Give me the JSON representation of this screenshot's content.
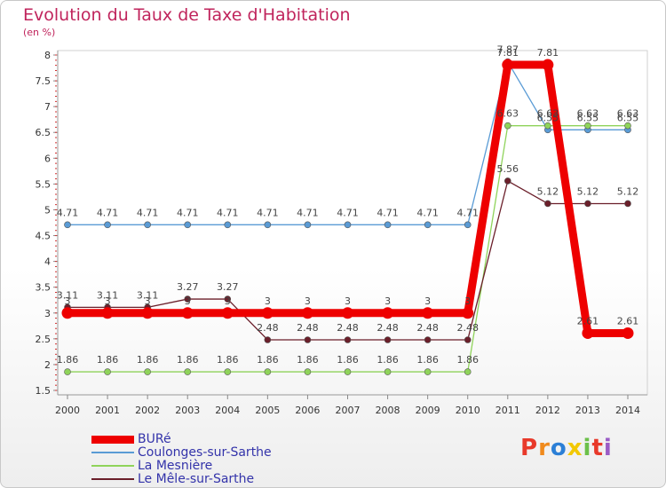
{
  "title": "Evolution du Taux de Taxe d'Habitation",
  "subtitle": "(en %)",
  "brand": "Proxiti",
  "chart_data": {
    "type": "line",
    "x": [
      "2000",
      "2001",
      "2002",
      "2003",
      "2004",
      "2005",
      "2006",
      "2007",
      "2008",
      "2009",
      "2010",
      "2011",
      "2012",
      "2013",
      "2014"
    ],
    "ylim": [
      1.5,
      8
    ],
    "yticks": [
      "1.5",
      "2",
      "2.5",
      "3",
      "3.5",
      "4",
      "4.5",
      "5",
      "5.5",
      "6",
      "6.5",
      "7",
      "7.5",
      "8"
    ],
    "grid": false,
    "legend": "bottom-left",
    "series": [
      {
        "name": "BURé",
        "color": "#ee0000",
        "values": [
          3,
          3,
          3,
          3,
          3,
          3,
          3,
          3,
          3,
          3,
          3,
          7.81,
          7.81,
          2.61,
          2.61
        ],
        "labels": [
          "3",
          "3",
          "3",
          "3",
          "3",
          "3",
          "3",
          "3",
          "3",
          "3",
          "3",
          "7.81",
          "7.81",
          "2.61",
          "2.61"
        ]
      },
      {
        "name": "Coulonges-sur-Sarthe",
        "color": "#5a9bd5",
        "values": [
          4.71,
          4.71,
          4.71,
          4.71,
          4.71,
          4.71,
          4.71,
          4.71,
          4.71,
          4.71,
          4.71,
          7.87,
          6.55,
          6.55,
          6.55
        ],
        "labels": [
          "4.71",
          "4.71",
          "4.71",
          "4.71",
          "4.71",
          "4.71",
          "4.71",
          "4.71",
          "4.71",
          "4.71",
          "4.71",
          "7.87",
          "6.55",
          "6.55",
          "6.55"
        ]
      },
      {
        "name": "La Mesnière",
        "color": "#8fd35a",
        "values": [
          1.86,
          1.86,
          1.86,
          1.86,
          1.86,
          1.86,
          1.86,
          1.86,
          1.86,
          1.86,
          1.86,
          6.63,
          6.63,
          6.63,
          6.63
        ],
        "labels": [
          "1.86",
          "1.86",
          "1.86",
          "1.86",
          "1.86",
          "1.86",
          "1.86",
          "1.86",
          "1.86",
          "1.86",
          "1.86",
          "6.63",
          "6.63",
          "6.63",
          "6.63"
        ]
      },
      {
        "name": "Le Mêle-sur-Sarthe",
        "color": "#6b1f2a",
        "values": [
          3.11,
          3.11,
          3.11,
          3.27,
          3.27,
          2.48,
          2.48,
          2.48,
          2.48,
          2.48,
          2.48,
          5.56,
          5.12,
          5.12,
          5.12
        ],
        "labels": [
          "3.11",
          "3.11",
          "3.11",
          "3.27",
          "3.27",
          "2.48",
          "2.48",
          "2.48",
          "2.48",
          "2.48",
          "2.48",
          "5.56",
          "5.12",
          "5.12",
          "5.12"
        ]
      }
    ]
  }
}
